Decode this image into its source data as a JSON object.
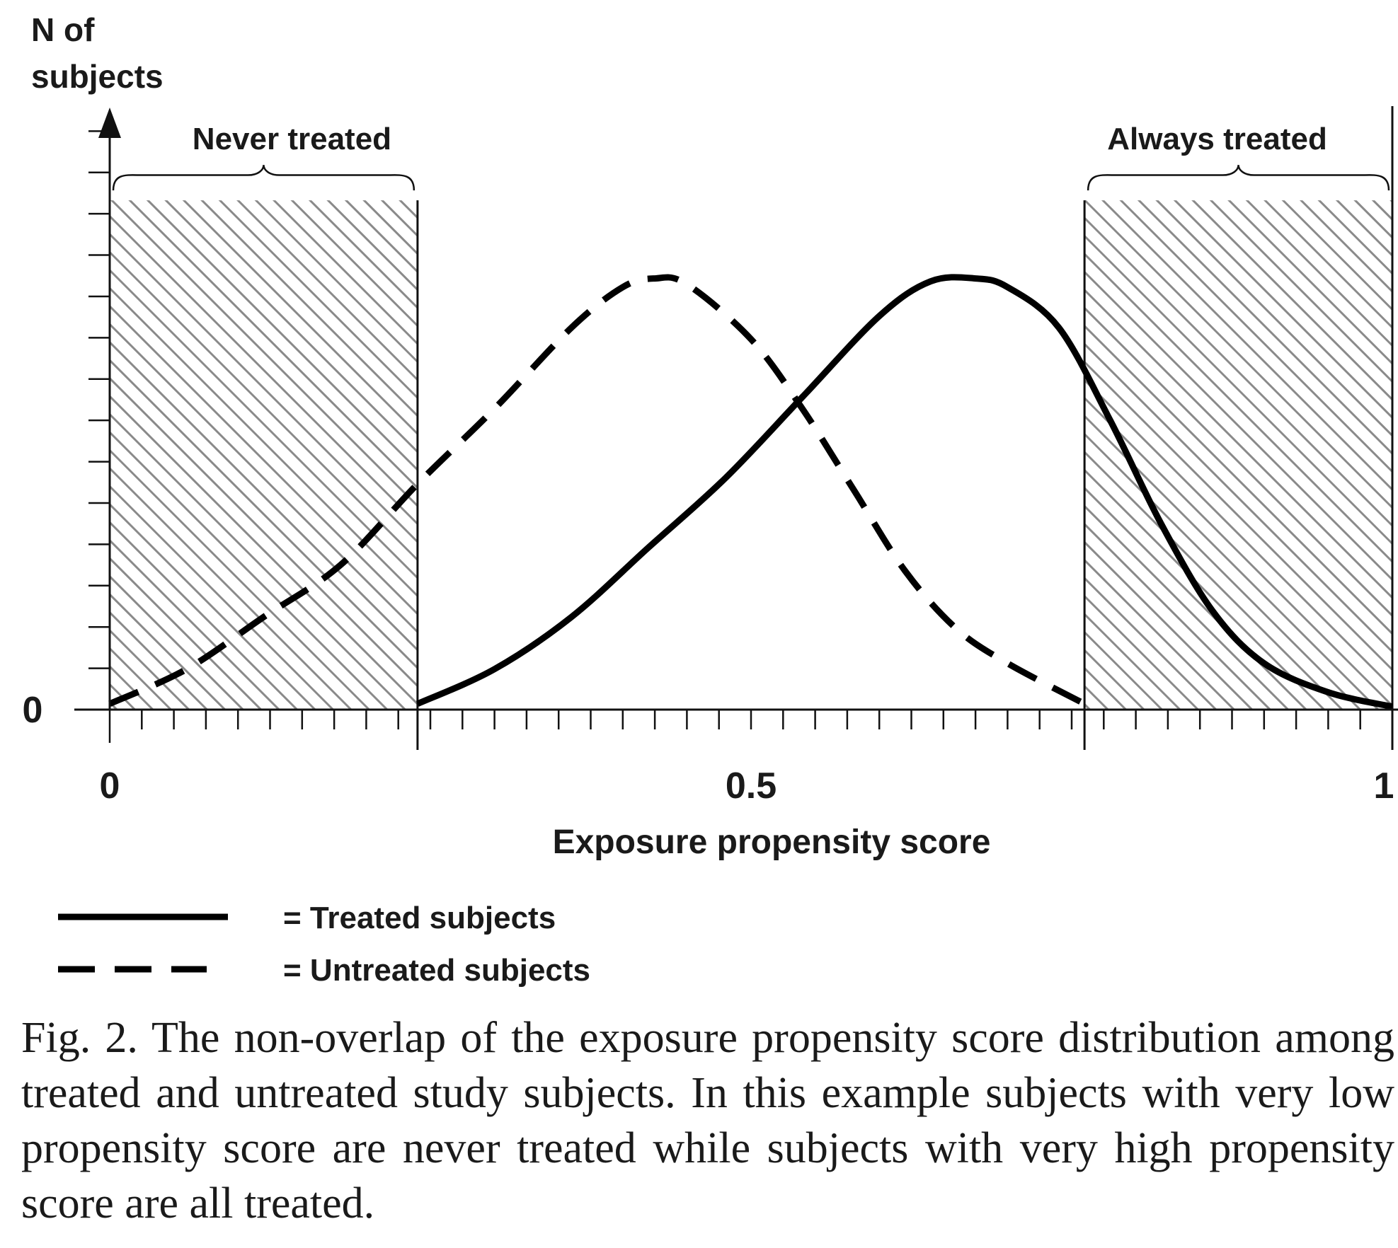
{
  "chart_data": {
    "type": "line",
    "ylabel_lines": [
      "N of",
      "subjects"
    ],
    "xlabel": "Exposure propensity score",
    "xlim": [
      0,
      1
    ],
    "ylim": [
      0,
      1
    ],
    "x_tick_labels": [
      {
        "x": 0,
        "label": "0"
      },
      {
        "x": 0.5,
        "label": "0.5"
      },
      {
        "x": 1,
        "label": "1"
      }
    ],
    "y_tick_labels": [
      {
        "y": 0,
        "label": "0"
      }
    ],
    "x_minor_tick_step": 0.025,
    "y_minor_tick_step": 0.0714,
    "regions": [
      {
        "name": "Never treated",
        "x_start": 0,
        "x_end": 0.24,
        "height": 0.88,
        "fill": "hatched"
      },
      {
        "name": "Always treated",
        "x_start": 0.76,
        "x_end": 1,
        "height": 0.88,
        "fill": "hatched"
      }
    ],
    "series": [
      {
        "name": "Treated subjects",
        "style": "solid",
        "color": "#000000",
        "points": [
          [
            0.24,
            0.01
          ],
          [
            0.3,
            0.07
          ],
          [
            0.36,
            0.16
          ],
          [
            0.42,
            0.28
          ],
          [
            0.48,
            0.4
          ],
          [
            0.54,
            0.54
          ],
          [
            0.6,
            0.68
          ],
          [
            0.64,
            0.74
          ],
          [
            0.675,
            0.745
          ],
          [
            0.7,
            0.73
          ],
          [
            0.74,
            0.66
          ],
          [
            0.78,
            0.5
          ],
          [
            0.82,
            0.32
          ],
          [
            0.86,
            0.17
          ],
          [
            0.9,
            0.08
          ],
          [
            0.95,
            0.03
          ],
          [
            1.0,
            0.005
          ]
        ]
      },
      {
        "name": "Untreated subjects",
        "style": "dashed",
        "color": "#000000",
        "points": [
          [
            0.0,
            0.01
          ],
          [
            0.06,
            0.07
          ],
          [
            0.12,
            0.16
          ],
          [
            0.18,
            0.25
          ],
          [
            0.24,
            0.39
          ],
          [
            0.3,
            0.52
          ],
          [
            0.36,
            0.66
          ],
          [
            0.4,
            0.73
          ],
          [
            0.425,
            0.745
          ],
          [
            0.45,
            0.735
          ],
          [
            0.5,
            0.64
          ],
          [
            0.54,
            0.52
          ],
          [
            0.58,
            0.38
          ],
          [
            0.62,
            0.24
          ],
          [
            0.66,
            0.14
          ],
          [
            0.7,
            0.08
          ],
          [
            0.76,
            0.01
          ]
        ]
      }
    ],
    "legend": {
      "position": "bottom-left",
      "entries": [
        {
          "style": "solid",
          "label": "= Treated subjects"
        },
        {
          "style": "dashed",
          "label": "= Untreated subjects"
        }
      ]
    },
    "grid": false
  },
  "caption": "Fig. 2. The non-overlap of the exposure propensity score distribution among treated and untreated study subjects. In this example subjects with very low propensity score are never treated while subjects with very high propensity score are all treated."
}
